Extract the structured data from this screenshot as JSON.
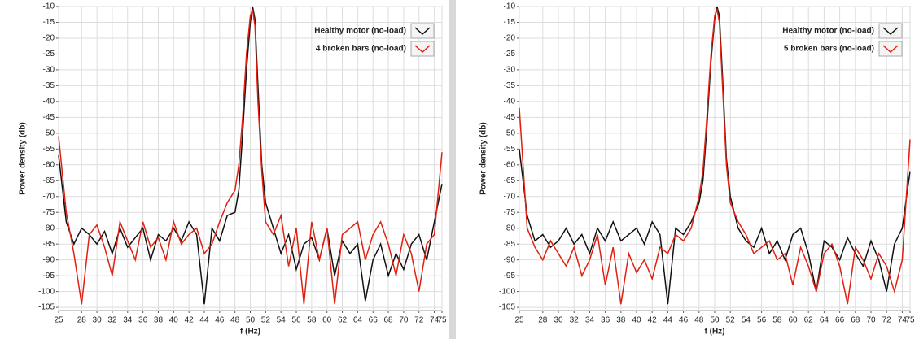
{
  "chart_data": [
    {
      "type": "line",
      "x_label": "f (Hz)",
      "y_label": "Power density (db)",
      "x": [
        25,
        26,
        27,
        28,
        29,
        30,
        31,
        32,
        33,
        34,
        35,
        36,
        37,
        38,
        39,
        40,
        41,
        42,
        43,
        44,
        45,
        46,
        47,
        48,
        48.5,
        49,
        49.5,
        50,
        50.3,
        50.6,
        51,
        51.5,
        52,
        53,
        54,
        55,
        56,
        57,
        58,
        59,
        60,
        61,
        62,
        63,
        64,
        65,
        66,
        67,
        68,
        69,
        70,
        71,
        72,
        73,
        74,
        75
      ],
      "series": [
        {
          "name": "Healthy motor (no-load)",
          "color": "#111111",
          "values": [
            -57,
            -78,
            -85,
            -80,
            -82,
            -85,
            -81,
            -88,
            -80,
            -86,
            -83,
            -80,
            -90,
            -82,
            -84,
            -80,
            -84,
            -78,
            -82,
            -104,
            -80,
            -84,
            -76,
            -75,
            -68,
            -50,
            -30,
            -15,
            -10,
            -14,
            -35,
            -60,
            -72,
            -80,
            -88,
            -82,
            -93,
            -85,
            -83,
            -90,
            -80,
            -95,
            -84,
            -88,
            -85,
            -103,
            -90,
            -85,
            -95,
            -88,
            -93,
            -85,
            -82,
            -90,
            -78,
            -66
          ]
        },
        {
          "name": "4 broken bars (no-load)",
          "color": "#e02010",
          "values": [
            -51,
            -75,
            -88,
            -104,
            -82,
            -79,
            -86,
            -95,
            -78,
            -84,
            -90,
            -78,
            -86,
            -83,
            -90,
            -78,
            -85,
            -82,
            -80,
            -88,
            -85,
            -78,
            -72,
            -68,
            -60,
            -45,
            -25,
            -13,
            -11,
            -16,
            -40,
            -62,
            -78,
            -82,
            -76,
            -92,
            -80,
            -104,
            -78,
            -90,
            -80,
            -104,
            -82,
            -80,
            -78,
            -90,
            -82,
            -78,
            -85,
            -95,
            -82,
            -88,
            -100,
            -85,
            -82,
            -56
          ]
        }
      ],
      "xlim": [
        25,
        75
      ],
      "ylim": [
        -106,
        -10
      ],
      "xticks": [
        25,
        28,
        30,
        32,
        34,
        36,
        38,
        40,
        42,
        44,
        46,
        48,
        50,
        52,
        54,
        56,
        58,
        60,
        62,
        64,
        66,
        68,
        70,
        72,
        74,
        75
      ],
      "yticks": [
        -10,
        -15,
        -20,
        -25,
        -30,
        -35,
        -40,
        -45,
        -50,
        -55,
        -60,
        -65,
        -70,
        -75,
        -80,
        -85,
        -90,
        -95,
        -100,
        -105
      ],
      "grid": true,
      "legend": "upper right"
    },
    {
      "type": "line",
      "x_label": "f (Hz)",
      "y_label": "Power density (db)",
      "x": [
        25,
        26,
        27,
        28,
        29,
        30,
        31,
        32,
        33,
        34,
        35,
        36,
        37,
        38,
        39,
        40,
        41,
        42,
        43,
        44,
        45,
        46,
        47,
        48,
        48.5,
        49,
        49.5,
        50,
        50.3,
        50.6,
        51,
        51.5,
        52,
        53,
        54,
        55,
        56,
        57,
        58,
        59,
        60,
        61,
        62,
        63,
        64,
        65,
        66,
        67,
        68,
        69,
        70,
        71,
        72,
        73,
        74,
        75
      ],
      "series": [
        {
          "name": "Healthy motor (no-load)",
          "color": "#111111",
          "values": [
            -55,
            -76,
            -84,
            -82,
            -86,
            -84,
            -80,
            -85,
            -82,
            -88,
            -80,
            -84,
            -78,
            -84,
            -82,
            -80,
            -85,
            -78,
            -82,
            -104,
            -80,
            -82,
            -78,
            -72,
            -65,
            -48,
            -28,
            -14,
            -10,
            -13,
            -32,
            -58,
            -70,
            -80,
            -84,
            -86,
            -80,
            -88,
            -84,
            -90,
            -82,
            -80,
            -88,
            -100,
            -84,
            -86,
            -90,
            -83,
            -88,
            -92,
            -84,
            -90,
            -100,
            -85,
            -80,
            -62
          ]
        },
        {
          "name": "5 broken bars (no-load)",
          "color": "#e02010",
          "values": [
            -42,
            -80,
            -86,
            -90,
            -84,
            -88,
            -92,
            -86,
            -95,
            -90,
            -82,
            -98,
            -86,
            -104,
            -88,
            -94,
            -90,
            -96,
            -86,
            -88,
            -82,
            -84,
            -80,
            -70,
            -62,
            -45,
            -26,
            -13,
            -11,
            -15,
            -35,
            -60,
            -72,
            -78,
            -82,
            -88,
            -86,
            -84,
            -90,
            -88,
            -98,
            -86,
            -92,
            -100,
            -88,
            -85,
            -92,
            -104,
            -86,
            -90,
            -96,
            -88,
            -92,
            -100,
            -90,
            -52
          ]
        }
      ],
      "xlim": [
        25,
        75
      ],
      "ylim": [
        -106,
        -10
      ],
      "xticks": [
        25,
        28,
        30,
        32,
        34,
        36,
        38,
        40,
        42,
        44,
        46,
        48,
        50,
        52,
        54,
        56,
        58,
        60,
        62,
        64,
        66,
        68,
        70,
        72,
        74,
        75
      ],
      "yticks": [
        -10,
        -15,
        -20,
        -25,
        -30,
        -35,
        -40,
        -45,
        -50,
        -55,
        -60,
        -65,
        -70,
        -75,
        -80,
        -85,
        -90,
        -95,
        -100,
        -105
      ],
      "grid": true,
      "legend": "upper right"
    }
  ]
}
